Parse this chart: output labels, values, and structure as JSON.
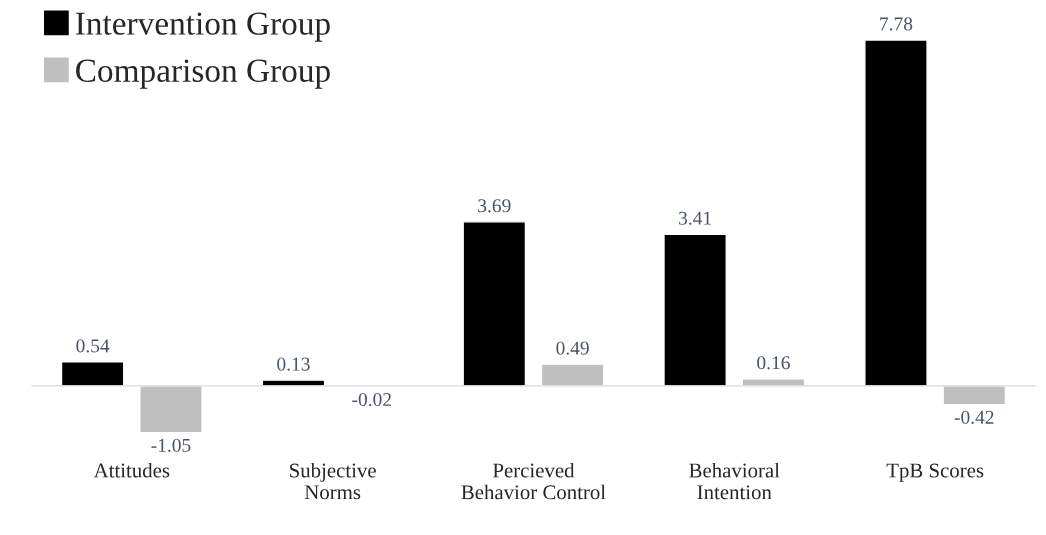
{
  "chart_data": {
    "type": "bar",
    "categories": [
      "Attitudes",
      "Subjective\nNorms",
      "Percieved\nBehavior Control",
      "Behavioral\nIntention",
      "TpB Scores"
    ],
    "series": [
      {
        "name": "Intervention Group",
        "color": "#000000",
        "values": [
          0.54,
          0.13,
          3.69,
          3.41,
          7.78
        ]
      },
      {
        "name": "Comparison Group",
        "color": "#bfbfbf",
        "values": [
          -1.05,
          -0.02,
          0.49,
          0.16,
          -0.42
        ]
      }
    ],
    "data_labels": true,
    "legend": "top left",
    "grid": false
  }
}
